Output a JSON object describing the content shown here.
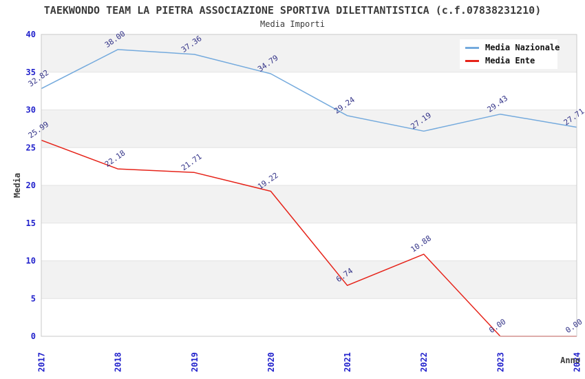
{
  "chart_data": {
    "type": "line",
    "title": "TAEKWONDO TEAM LA PIETRA ASSOCIAZIONE SPORTIVA DILETTANTISTICA (c.f.07838231210)",
    "subtitle": "Media Importi",
    "xlabel": "Anno",
    "ylabel": "Media",
    "categories": [
      "2017",
      "2018",
      "2019",
      "2020",
      "2021",
      "2022",
      "2023",
      "2024"
    ],
    "series": [
      {
        "name": "Media Nazionale",
        "color": "#74aadd",
        "values": [
          32.82,
          38.0,
          37.36,
          34.79,
          29.24,
          27.19,
          29.43,
          27.71
        ]
      },
      {
        "name": "Media Ente",
        "color": "#e62319",
        "values": [
          25.99,
          22.18,
          21.71,
          19.22,
          6.74,
          10.88,
          0.0,
          0.0
        ]
      }
    ],
    "ylim": [
      0,
      40
    ],
    "ytick_step": 5,
    "yticks": [
      "0",
      "5",
      "10",
      "15",
      "20",
      "25",
      "30",
      "35",
      "40"
    ],
    "legend_position": "top-right",
    "grid": "banded",
    "value_labels": true,
    "value_label_decimals": 2,
    "colors": {
      "band": "#f2f2f2",
      "plot_border": "#c9c9c9",
      "gridline": "#e3e3e3",
      "tick_label": "#2222cc",
      "value_label": "#333388",
      "text": "#3b3b3b",
      "legend_bg": "#ffffff"
    }
  }
}
